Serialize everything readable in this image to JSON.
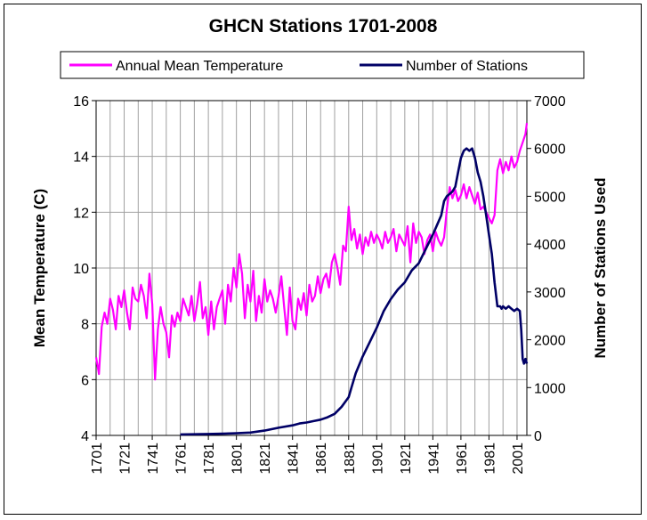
{
  "chart_data": {
    "type": "line",
    "title": "GHCN Stations 1701-2008",
    "ylabel": "Mean Temperature (C)",
    "y2label": "Number of Stations Used",
    "xlabel": "",
    "xlim": [
      1701,
      2008
    ],
    "ylim": [
      4,
      16
    ],
    "y2lim": [
      0,
      7000
    ],
    "x_tick_labels": [
      "1701",
      "1721",
      "1741",
      "1761",
      "1781",
      "1801",
      "1821",
      "1841",
      "1861",
      "1881",
      "1901",
      "1921",
      "1941",
      "1961",
      "1981",
      "2001"
    ],
    "y_tick_labels": [
      "4",
      "6",
      "8",
      "10",
      "12",
      "14",
      "16"
    ],
    "y2_tick_labels": [
      "0",
      "1000",
      "2000",
      "3000",
      "4000",
      "5000",
      "6000",
      "7000"
    ],
    "grid": true,
    "legend_position": "top",
    "colors": {
      "temperature": "#ff00ff",
      "stations": "#000066"
    },
    "series": [
      {
        "name": "Annual Mean Temperature",
        "axis": "left",
        "x": [
          1701,
          1703,
          1705,
          1707,
          1709,
          1711,
          1713,
          1715,
          1717,
          1719,
          1721,
          1723,
          1725,
          1727,
          1729,
          1731,
          1733,
          1735,
          1737,
          1739,
          1741,
          1743,
          1745,
          1747,
          1749,
          1751,
          1753,
          1755,
          1757,
          1759,
          1761,
          1763,
          1765,
          1767,
          1769,
          1771,
          1773,
          1775,
          1777,
          1779,
          1781,
          1783,
          1785,
          1787,
          1789,
          1791,
          1793,
          1795,
          1797,
          1799,
          1801,
          1803,
          1805,
          1807,
          1809,
          1811,
          1813,
          1815,
          1817,
          1819,
          1821,
          1823,
          1825,
          1827,
          1829,
          1831,
          1833,
          1835,
          1837,
          1839,
          1841,
          1843,
          1845,
          1847,
          1849,
          1851,
          1853,
          1855,
          1857,
          1859,
          1861,
          1863,
          1865,
          1867,
          1869,
          1871,
          1873,
          1875,
          1877,
          1879,
          1881,
          1883,
          1885,
          1887,
          1889,
          1891,
          1893,
          1895,
          1897,
          1899,
          1901,
          1903,
          1905,
          1907,
          1909,
          1911,
          1913,
          1915,
          1917,
          1919,
          1921,
          1923,
          1925,
          1927,
          1929,
          1931,
          1933,
          1935,
          1937,
          1939,
          1941,
          1943,
          1945,
          1947,
          1949,
          1951,
          1953,
          1955,
          1957,
          1959,
          1961,
          1963,
          1965,
          1967,
          1969,
          1971,
          1973,
          1975,
          1977,
          1979,
          1981,
          1983,
          1985,
          1987,
          1989,
          1991,
          1993,
          1995,
          1997,
          1999,
          2001,
          2003,
          2005,
          2007,
          2008
        ],
        "values": [
          6.8,
          6.2,
          7.9,
          8.4,
          8.0,
          8.9,
          8.5,
          7.8,
          9.0,
          8.6,
          9.2,
          8.4,
          7.8,
          9.3,
          8.9,
          8.8,
          9.4,
          9.0,
          8.2,
          9.8,
          8.7,
          6.0,
          7.8,
          8.6,
          8.0,
          7.7,
          6.8,
          8.3,
          7.9,
          8.4,
          8.1,
          8.9,
          8.6,
          8.3,
          9.0,
          8.1,
          8.7,
          9.5,
          8.2,
          8.6,
          7.6,
          8.8,
          7.8,
          8.6,
          8.9,
          9.2,
          8.0,
          9.4,
          8.8,
          10.0,
          9.3,
          10.5,
          9.8,
          8.2,
          9.4,
          8.8,
          9.9,
          8.1,
          9.0,
          8.4,
          9.6,
          8.8,
          9.2,
          8.9,
          8.4,
          9.0,
          9.7,
          8.6,
          7.6,
          9.3,
          8.1,
          7.8,
          8.9,
          8.5,
          9.1,
          8.3,
          9.4,
          8.8,
          9.0,
          9.7,
          9.1,
          9.6,
          9.8,
          9.3,
          10.2,
          10.5,
          10.0,
          9.4,
          10.8,
          10.6,
          12.2,
          11.0,
          11.4,
          10.7,
          11.2,
          10.5,
          11.1,
          10.8,
          11.3,
          10.9,
          11.2,
          11.0,
          10.7,
          11.3,
          10.9,
          11.1,
          11.4,
          10.6,
          11.2,
          11.0,
          10.8,
          11.5,
          10.2,
          11.6,
          10.9,
          11.3,
          11.1,
          10.5,
          11.0,
          11.2,
          10.6,
          11.3,
          11.0,
          10.8,
          11.1,
          12.1,
          12.9,
          12.5,
          12.8,
          12.4,
          12.6,
          13.0,
          12.5,
          12.9,
          12.6,
          12.3,
          12.7,
          12.1,
          12.2,
          12.0,
          11.8,
          11.6,
          11.9,
          13.5,
          13.9,
          13.4,
          13.8,
          13.5,
          14.0,
          13.6,
          13.8,
          14.2,
          14.5,
          14.8,
          15.2
        ]
      },
      {
        "name": "Number of Stations",
        "axis": "right",
        "x": [
          1701,
          1761,
          1771,
          1781,
          1791,
          1801,
          1811,
          1821,
          1831,
          1841,
          1846,
          1851,
          1856,
          1861,
          1866,
          1871,
          1876,
          1881,
          1883,
          1886,
          1891,
          1896,
          1901,
          1906,
          1911,
          1916,
          1921,
          1926,
          1931,
          1936,
          1941,
          1944,
          1947,
          1949,
          1951,
          1953,
          1955,
          1957,
          1959,
          1961,
          1963,
          1965,
          1967,
          1969,
          1971,
          1973,
          1975,
          1977,
          1979,
          1981,
          1983,
          1985,
          1987,
          1989,
          1990,
          1991,
          1993,
          1995,
          1997,
          1999,
          2001,
          2003,
          2004,
          2005,
          2006,
          2007,
          2008
        ],
        "values": [
          null,
          20,
          25,
          30,
          35,
          45,
          60,
          100,
          160,
          210,
          250,
          270,
          300,
          330,
          380,
          450,
          600,
          800,
          1000,
          1300,
          1650,
          1950,
          2250,
          2600,
          2850,
          3050,
          3200,
          3450,
          3600,
          3900,
          4200,
          4400,
          4600,
          4900,
          5000,
          5050,
          5100,
          5200,
          5500,
          5800,
          5950,
          6000,
          5950,
          6000,
          5800,
          5500,
          5300,
          5000,
          4600,
          4200,
          3800,
          3200,
          2700,
          2700,
          2650,
          2700,
          2650,
          2700,
          2650,
          2600,
          2650,
          2600,
          2200,
          1600,
          1500,
          1600,
          1500
        ]
      }
    ]
  }
}
